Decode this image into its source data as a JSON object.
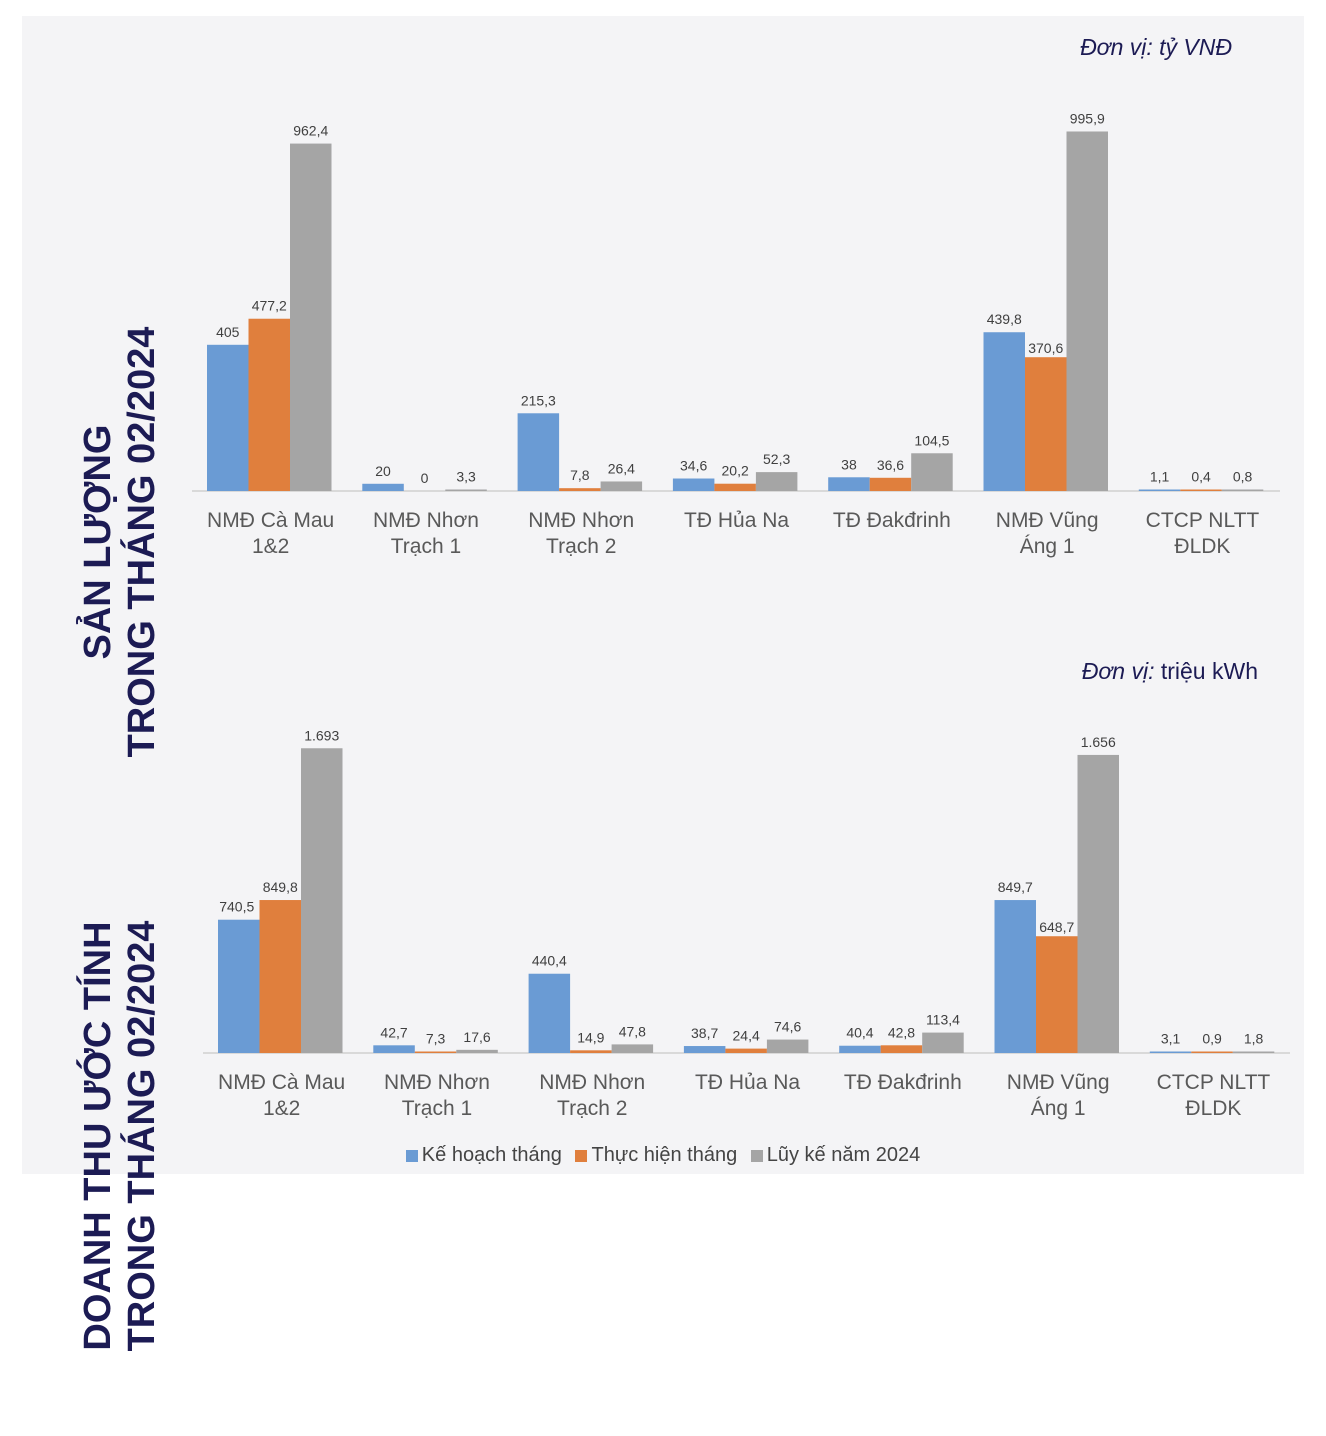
{
  "chart_data": [
    {
      "type": "bar",
      "title": "SẢN LƯỢNG TRONG THÁNG 02/2024",
      "title_lines": [
        "SẢN LƯỢNG",
        "TRONG THÁNG 02/2024"
      ],
      "unit_label": "Đơn vị: tỷ VNĐ",
      "unit_prefix": "Đơn vị:",
      "unit_suffix": "tỷ VNĐ",
      "categories": [
        [
          "NMĐ Cà Mau",
          "1&2"
        ],
        [
          "NMĐ Nhơn",
          "Trạch 1"
        ],
        [
          "NMĐ Nhơn",
          "Trạch 2"
        ],
        [
          "TĐ Hủa Na"
        ],
        [
          "TĐ Đakđrinh"
        ],
        [
          "NMĐ Vũng",
          "Áng 1"
        ],
        [
          "CTCP NLTT",
          "ĐLDK"
        ]
      ],
      "series": [
        {
          "name": "Kế hoạch tháng",
          "values": [
            405,
            20,
            215.3,
            34.6,
            38,
            439.8,
            1.1
          ],
          "labels": [
            "405",
            "20",
            "215,3",
            "34,6",
            "38",
            "439,8",
            "1,1"
          ]
        },
        {
          "name": "Thực hiện tháng",
          "values": [
            477.2,
            0,
            7.8,
            20.2,
            36.6,
            370.6,
            0.4
          ],
          "labels": [
            "477,2",
            "0",
            "7,8",
            "20,2",
            "36,6",
            "370,6",
            "0,4"
          ]
        },
        {
          "name": "Lũy kế năm 2024",
          "values": [
            962.4,
            3.3,
            26.4,
            52.3,
            104.5,
            995.9,
            0.8
          ],
          "labels": [
            "962,4",
            "3,3",
            "26,4",
            "52,3",
            "104,5",
            "995,9",
            "0,8"
          ]
        }
      ],
      "ylim": [
        0,
        1000
      ],
      "xlabel": "",
      "ylabel": ""
    },
    {
      "type": "bar",
      "title": "DOANH THU ƯỚC TÍNH TRONG THÁNG 02/2024",
      "title_lines": [
        "DOANH THU ƯỚC TÍNH",
        "TRONG THÁNG 02/2024"
      ],
      "unit_label": "Đơn vị: triệu kWh",
      "unit_prefix": "Đơn vị:",
      "unit_suffix": "triệu kWh",
      "categories": [
        [
          "NMĐ Cà Mau",
          "1&2"
        ],
        [
          "NMĐ Nhơn",
          "Trạch 1"
        ],
        [
          "NMĐ Nhơn",
          "Trạch 2"
        ],
        [
          "TĐ Hủa Na"
        ],
        [
          "TĐ Đakđrinh"
        ],
        [
          "NMĐ Vũng",
          "Áng 1"
        ],
        [
          "CTCP NLTT",
          "ĐLDK"
        ]
      ],
      "series": [
        {
          "name": "Kế hoạch tháng",
          "values": [
            740.5,
            42.7,
            440.4,
            38.7,
            40.4,
            849.7,
            3.1
          ],
          "labels": [
            "740,5",
            "42,7",
            "440,4",
            "38,7",
            "40,4",
            "849,7",
            "3,1"
          ]
        },
        {
          "name": "Thực hiện tháng",
          "values": [
            849.8,
            7.3,
            14.9,
            24.4,
            42.8,
            648.7,
            0.9
          ],
          "labels": [
            "849,8",
            "7,3",
            "14,9",
            "24,4",
            "42,8",
            "648,7",
            "0,9"
          ]
        },
        {
          "name": "Lũy kế năm 2024",
          "values": [
            1693,
            17.6,
            47.8,
            74.6,
            113.4,
            1656,
            1.8
          ],
          "labels": [
            "1.693",
            "17,6",
            "47,8",
            "74,6",
            "113,4",
            "1.656",
            "1,8"
          ]
        }
      ],
      "ylim": [
        0,
        1700
      ],
      "xlabel": "",
      "ylabel": ""
    }
  ],
  "legend": [
    {
      "name": "Kế hoạch tháng",
      "color": "#6a9bd4"
    },
    {
      "name": "Thực hiện tháng",
      "color": "#e07f3d"
    },
    {
      "name": "Lũy kế năm 2024",
      "color": "#a5a5a5"
    }
  ],
  "colors": {
    "series": [
      "#6a9bd4",
      "#e07f3d",
      "#a5a5a5"
    ],
    "title": "#1c1b54",
    "label": "#404040",
    "axis": "#d9d9d9",
    "background": "#f4f4f6"
  }
}
